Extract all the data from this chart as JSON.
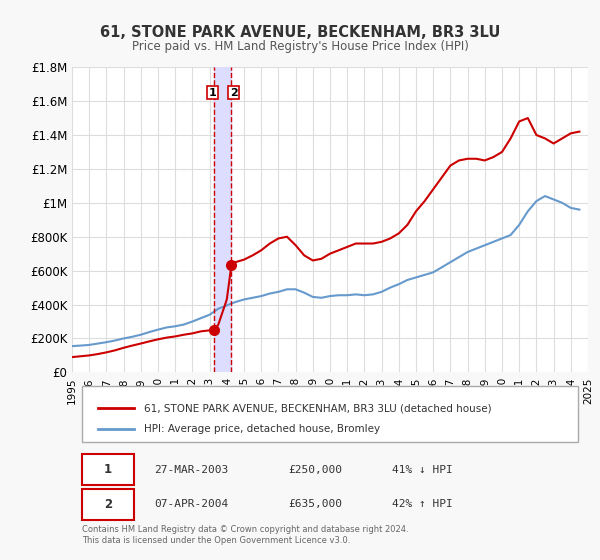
{
  "title": "61, STONE PARK AVENUE, BECKENHAM, BR3 3LU",
  "subtitle": "Price paid vs. HM Land Registry's House Price Index (HPI)",
  "xlabel": "",
  "ylabel": "",
  "ylim": [
    0,
    1800000
  ],
  "xlim": [
    1995,
    2025
  ],
  "yticks": [
    0,
    200000,
    400000,
    600000,
    800000,
    1000000,
    1200000,
    1400000,
    1600000,
    1800000
  ],
  "ytick_labels": [
    "£0",
    "£200K",
    "£400K",
    "£600K",
    "£800K",
    "£1M",
    "£1.2M",
    "£1.4M",
    "£1.6M",
    "£1.8M"
  ],
  "xticks": [
    1995,
    1996,
    1997,
    1998,
    1999,
    2000,
    2001,
    2002,
    2003,
    2004,
    2005,
    2006,
    2007,
    2008,
    2009,
    2010,
    2011,
    2012,
    2013,
    2014,
    2015,
    2016,
    2017,
    2018,
    2019,
    2020,
    2021,
    2022,
    2023,
    2024,
    2025
  ],
  "transaction1_x": 2003.23,
  "transaction1_y": 250000,
  "transaction2_x": 2004.27,
  "transaction2_y": 635000,
  "vline1_x": 2003.23,
  "vline2_x": 2004.27,
  "shade_x1": 2003.23,
  "shade_x2": 2004.27,
  "red_line_color": "#cc0000",
  "blue_line_color": "#6699cc",
  "shade_color": "#ddddff",
  "grid_color": "#dddddd",
  "legend_label_red": "61, STONE PARK AVENUE, BECKENHAM, BR3 3LU (detached house)",
  "legend_label_blue": "HPI: Average price, detached house, Bromley",
  "table_row1": [
    "1",
    "27-MAR-2003",
    "£250,000",
    "41% ↓ HPI"
  ],
  "table_row2": [
    "2",
    "07-APR-2004",
    "£635,000",
    "42% ↑ HPI"
  ],
  "footer": "Contains HM Land Registry data © Crown copyright and database right 2024.\nThis data is licensed under the Open Government Licence v3.0.",
  "background_color": "#f8f8f8",
  "plot_bg_color": "#ffffff",
  "hpi_blue": {
    "x": [
      1995,
      1995.5,
      1996,
      1996.5,
      1997,
      1997.5,
      1998,
      1998.5,
      1999,
      1999.5,
      2000,
      2000.5,
      2001,
      2001.5,
      2002,
      2002.5,
      2003,
      2003.5,
      2004,
      2004.5,
      2005,
      2005.5,
      2006,
      2006.5,
      2007,
      2007.5,
      2008,
      2008.5,
      2009,
      2009.5,
      2010,
      2010.5,
      2011,
      2011.5,
      2012,
      2012.5,
      2013,
      2013.5,
      2014,
      2014.5,
      2015,
      2015.5,
      2016,
      2016.5,
      2017,
      2017.5,
      2018,
      2018.5,
      2019,
      2019.5,
      2020,
      2020.5,
      2021,
      2021.5,
      2022,
      2022.5,
      2023,
      2023.5,
      2024,
      2024.5
    ],
    "y": [
      155000,
      158000,
      162000,
      170000,
      178000,
      188000,
      200000,
      210000,
      222000,
      238000,
      252000,
      265000,
      272000,
      282000,
      300000,
      320000,
      340000,
      375000,
      395000,
      415000,
      430000,
      440000,
      450000,
      465000,
      475000,
      490000,
      490000,
      470000,
      445000,
      440000,
      450000,
      455000,
      455000,
      460000,
      455000,
      460000,
      475000,
      500000,
      520000,
      545000,
      560000,
      575000,
      590000,
      620000,
      650000,
      680000,
      710000,
      730000,
      750000,
      770000,
      790000,
      810000,
      870000,
      950000,
      1010000,
      1040000,
      1020000,
      1000000,
      970000,
      960000
    ]
  },
  "price_red": {
    "x": [
      1995,
      1995.5,
      1996,
      1996.5,
      1997,
      1997.5,
      1998,
      1998.5,
      1999,
      1999.5,
      2000,
      2000.5,
      2001,
      2001.5,
      2002,
      2002.5,
      2003,
      2003.23,
      2003.5,
      2004,
      2004.27,
      2004.5,
      2005,
      2005.5,
      2006,
      2006.5,
      2007,
      2007.5,
      2008,
      2008.5,
      2009,
      2009.5,
      2010,
      2010.5,
      2011,
      2011.5,
      2012,
      2012.5,
      2013,
      2013.5,
      2014,
      2014.5,
      2015,
      2015.5,
      2016,
      2016.5,
      2017,
      2017.5,
      2018,
      2018.5,
      2019,
      2019.5,
      2020,
      2020.5,
      2021,
      2021.5,
      2022,
      2022.5,
      2023,
      2023.5,
      2024,
      2024.5
    ],
    "y": [
      90000,
      95000,
      100000,
      108000,
      118000,
      130000,
      145000,
      158000,
      170000,
      183000,
      195000,
      205000,
      212000,
      222000,
      230000,
      242000,
      248000,
      250000,
      280000,
      430000,
      635000,
      650000,
      665000,
      690000,
      720000,
      760000,
      790000,
      800000,
      750000,
      690000,
      660000,
      670000,
      700000,
      720000,
      740000,
      760000,
      760000,
      760000,
      770000,
      790000,
      820000,
      870000,
      950000,
      1010000,
      1080000,
      1150000,
      1220000,
      1250000,
      1260000,
      1260000,
      1250000,
      1270000,
      1300000,
      1380000,
      1480000,
      1500000,
      1400000,
      1380000,
      1350000,
      1380000,
      1410000,
      1420000
    ]
  }
}
